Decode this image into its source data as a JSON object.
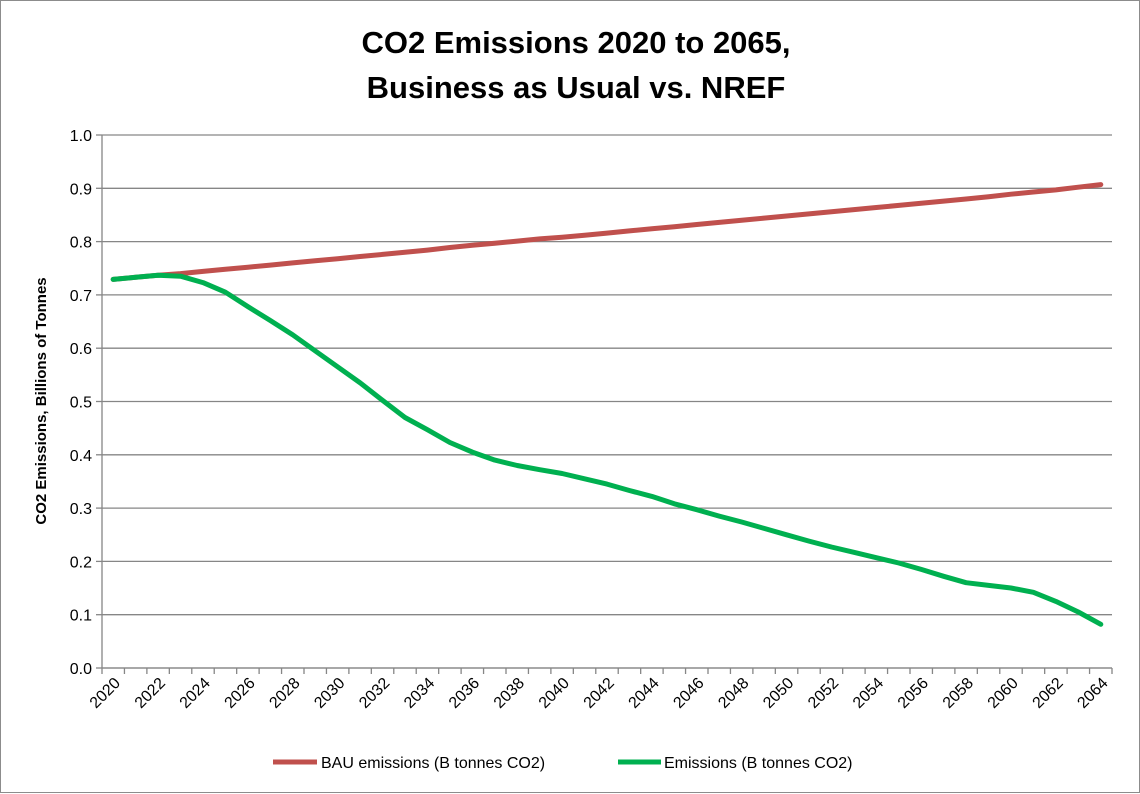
{
  "chart_data": {
    "type": "line",
    "title_lines": [
      "CO2 Emissions 2020 to 2065,",
      "Business as Usual vs. NREF"
    ],
    "xlabel": "",
    "ylabel": "CO2 Emissions,  Billions of Tonnes",
    "ylim": [
      0,
      1.0
    ],
    "y_ticks": [
      "0.0",
      "0.1",
      "0.2",
      "0.3",
      "0.4",
      "0.5",
      "0.6",
      "0.7",
      "0.8",
      "0.9",
      "1.0"
    ],
    "x": [
      2020,
      2021,
      2022,
      2023,
      2024,
      2025,
      2026,
      2027,
      2028,
      2029,
      2030,
      2031,
      2032,
      2033,
      2034,
      2035,
      2036,
      2037,
      2038,
      2039,
      2040,
      2041,
      2042,
      2043,
      2044,
      2045,
      2046,
      2047,
      2048,
      2049,
      2050,
      2051,
      2052,
      2053,
      2054,
      2055,
      2056,
      2057,
      2058,
      2059,
      2060,
      2061,
      2062,
      2063,
      2064
    ],
    "x_tick_labels": [
      "2020",
      "2022",
      "2024",
      "2026",
      "2028",
      "2030",
      "2032",
      "2034",
      "2036",
      "2038",
      "2040",
      "2042",
      "2044",
      "2046",
      "2048",
      "2050",
      "2052",
      "2054",
      "2056",
      "2058",
      "2060",
      "2062",
      "2064"
    ],
    "grid": true,
    "legend_position": "bottom",
    "series": [
      {
        "name": "BAU emissions (B tonnes CO2)",
        "color": "#c0504d",
        "values": [
          0.729,
          0.733,
          0.737,
          0.74,
          0.744,
          0.748,
          0.752,
          0.756,
          0.76,
          0.764,
          0.768,
          0.772,
          0.776,
          0.78,
          0.784,
          0.789,
          0.793,
          0.797,
          0.801,
          0.805,
          0.808,
          0.812,
          0.816,
          0.82,
          0.824,
          0.828,
          0.832,
          0.836,
          0.84,
          0.844,
          0.848,
          0.852,
          0.856,
          0.86,
          0.864,
          0.868,
          0.872,
          0.876,
          0.88,
          0.884,
          0.889,
          0.893,
          0.897,
          0.902,
          0.907
        ]
      },
      {
        "name": "Emissions (B tonnes CO2)",
        "color": "#00b050",
        "values": [
          0.729,
          0.733,
          0.737,
          0.735,
          0.723,
          0.705,
          0.678,
          0.652,
          0.625,
          0.595,
          0.565,
          0.535,
          0.502,
          0.47,
          0.447,
          0.423,
          0.405,
          0.39,
          0.38,
          0.372,
          0.365,
          0.355,
          0.345,
          0.333,
          0.322,
          0.308,
          0.297,
          0.285,
          0.274,
          0.262,
          0.25,
          0.238,
          0.227,
          0.217,
          0.207,
          0.197,
          0.185,
          0.172,
          0.16,
          0.155,
          0.15,
          0.142,
          0.125,
          0.105,
          0.082
        ]
      }
    ]
  }
}
